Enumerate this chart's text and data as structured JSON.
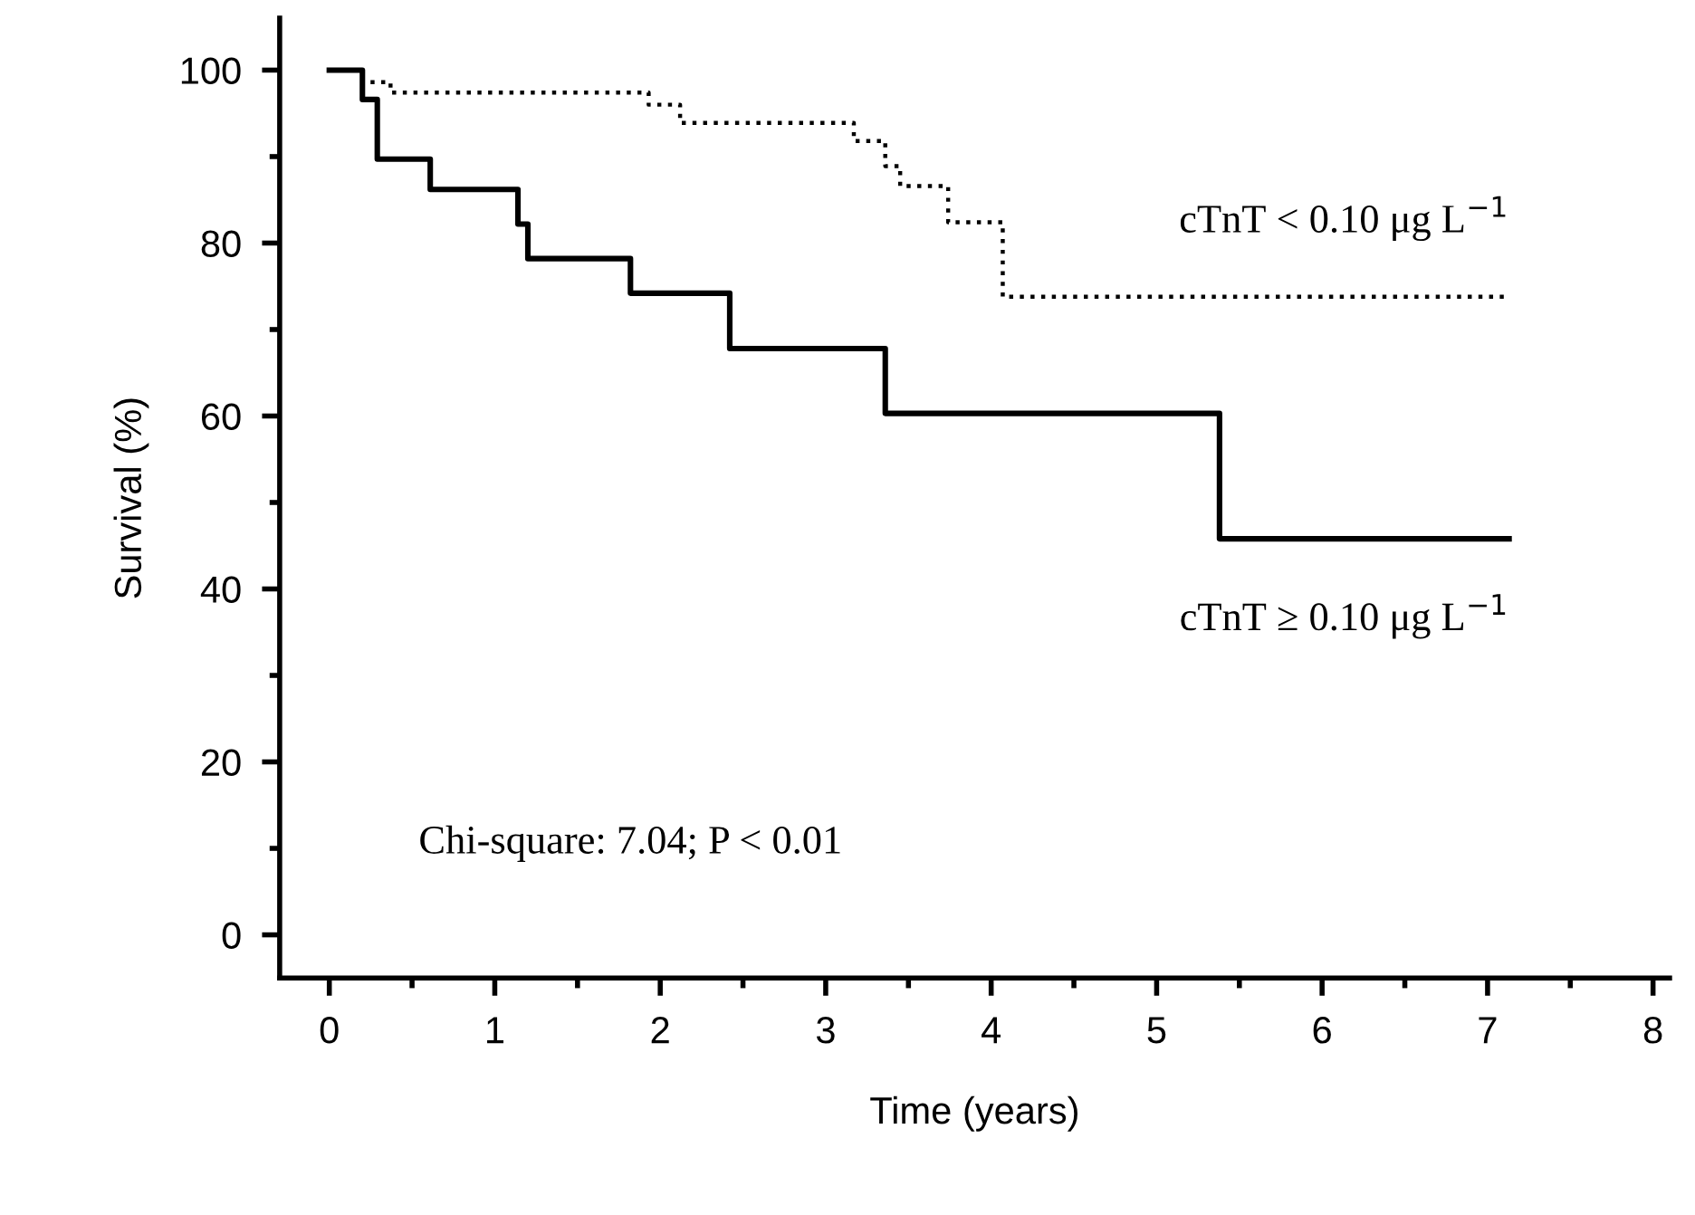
{
  "chart_data": {
    "type": "step",
    "xlabel": "Time (years)",
    "ylabel": "Survival (%)",
    "xlim": [
      -0.3,
      8.1
    ],
    "ylim": [
      -5,
      106
    ],
    "xticks": [
      0,
      1,
      2,
      3,
      4,
      5,
      6,
      7,
      8
    ],
    "yticks": [
      0,
      20,
      40,
      60,
      80,
      100
    ],
    "grid": false,
    "legend": false,
    "series": [
      {
        "name": "cTnT < 0.10 μg L$^{−1}$",
        "color": "#000000",
        "line_style": "dotted",
        "x": [
          0,
          0.2,
          0.37,
          1.93,
          2.12,
          3.17,
          3.36,
          3.45,
          3.74,
          4.07,
          7.13
        ],
        "values": [
          100,
          98.6,
          97.4,
          96,
          93.9,
          91.8,
          88.9,
          86.6,
          82.4,
          73.8,
          73.8
        ]
      },
      {
        "name": "cTnT ≥ 0.10 μg L$^{−1}$",
        "color": "#000000",
        "line_style": "solid",
        "x": [
          0,
          0.2,
          0.29,
          0.61,
          1.14,
          1.2,
          1.82,
          2.42,
          3.36,
          5.38,
          7.13
        ],
        "values": [
          100,
          96.6,
          89.7,
          86.2,
          82.2,
          78.2,
          74.2,
          67.8,
          60.3,
          45.8,
          45.8
        ]
      }
    ],
    "annotations": [
      "Chi-square: 7.04; P < 0.01"
    ]
  }
}
